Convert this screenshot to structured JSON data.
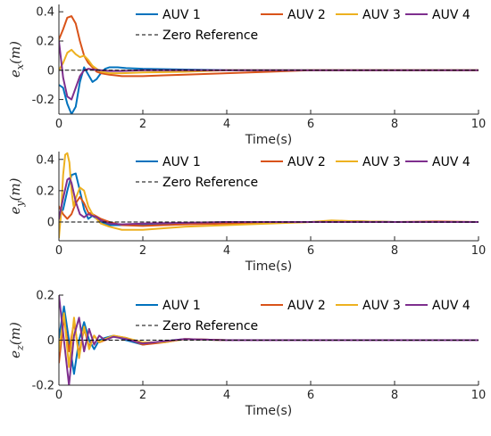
{
  "chart_data": [
    {
      "type": "line",
      "ylabel": "e_x(m)",
      "xlabel": "Time(s)",
      "xlim": [
        0,
        10
      ],
      "ylim": [
        -0.3,
        0.45
      ],
      "xticks": [
        "0",
        "2",
        "4",
        "6",
        "8",
        "10"
      ],
      "yticks": [
        -0.2,
        0,
        0.2,
        0.4
      ],
      "ytick_labels": [
        "-0.2",
        "0",
        "0.2",
        "0.4"
      ],
      "legend": "top-right",
      "series": [
        {
          "name": "AUV 1",
          "color": "#0072BD",
          "x": [
            0,
            0.1,
            0.2,
            0.3,
            0.4,
            0.5,
            0.6,
            0.7,
            0.8,
            0.9,
            1.0,
            1.1,
            1.2,
            1.4,
            1.6,
            2.0,
            3.0,
            4.0,
            10
          ],
          "y": [
            -0.1,
            -0.12,
            -0.23,
            -0.3,
            -0.25,
            -0.08,
            0.02,
            -0.03,
            -0.08,
            -0.06,
            -0.02,
            0.01,
            0.02,
            0.02,
            0.015,
            0.01,
            0.005,
            0,
            0
          ]
        },
        {
          "name": "AUV 2",
          "color": "#D95319",
          "x": [
            0,
            0.1,
            0.2,
            0.3,
            0.4,
            0.5,
            0.6,
            0.7,
            0.8,
            0.9,
            1.0,
            1.2,
            1.5,
            2.0,
            2.5,
            3.0,
            4.0,
            5.0,
            6.0,
            10
          ],
          "y": [
            0.21,
            0.28,
            0.36,
            0.37,
            0.32,
            0.2,
            0.1,
            0.05,
            0.02,
            -0.01,
            -0.02,
            -0.03,
            -0.04,
            -0.04,
            -0.035,
            -0.03,
            -0.02,
            -0.01,
            0,
            0
          ]
        },
        {
          "name": "AUV 3",
          "color": "#EDB120",
          "x": [
            0,
            0.1,
            0.2,
            0.3,
            0.4,
            0.5,
            0.6,
            0.7,
            0.8,
            0.9,
            1.0,
            1.2,
            1.5,
            2.0,
            3.0,
            4.0,
            10
          ],
          "y": [
            0,
            0.05,
            0.12,
            0.14,
            0.11,
            0.09,
            0.1,
            0.07,
            0.03,
            0.01,
            -0.01,
            -0.02,
            -0.02,
            -0.015,
            -0.01,
            0,
            0
          ]
        },
        {
          "name": "AUV 4",
          "color": "#7E2F8E",
          "x": [
            0,
            0.1,
            0.2,
            0.3,
            0.4,
            0.5,
            0.6,
            0.7,
            0.8,
            1.0,
            1.2,
            1.5,
            2.0,
            3.0,
            10
          ],
          "y": [
            0.2,
            -0.05,
            -0.18,
            -0.2,
            -0.12,
            -0.04,
            0,
            0.01,
            0.005,
            0,
            -0.005,
            -0.005,
            0,
            0,
            0
          ]
        },
        {
          "name": "Zero Reference",
          "color": "#000000",
          "dashed": true,
          "x": [
            0,
            10
          ],
          "y": [
            0,
            0
          ]
        }
      ]
    },
    {
      "type": "line",
      "ylabel": "e_y(m)",
      "xlabel": "Time(s)",
      "xlim": [
        0,
        10
      ],
      "ylim": [
        -0.12,
        0.45
      ],
      "xticks": [
        "0",
        "2",
        "4",
        "6",
        "8",
        "10"
      ],
      "yticks": [
        0,
        0.2,
        0.4
      ],
      "ytick_labels": [
        "0",
        "0.2",
        "0.4"
      ],
      "legend": "top-right",
      "series": [
        {
          "name": "AUV 1",
          "color": "#0072BD",
          "x": [
            0,
            0.1,
            0.2,
            0.3,
            0.4,
            0.5,
            0.6,
            0.7,
            0.8,
            0.9,
            1.0,
            1.2,
            1.5,
            2.0,
            3.0,
            4.0,
            6.0,
            7.0,
            8.0,
            10
          ],
          "y": [
            0.05,
            0.08,
            0.2,
            0.3,
            0.31,
            0.2,
            0.08,
            0.02,
            0.04,
            0.02,
            0,
            -0.02,
            -0.02,
            -0.015,
            -0.01,
            0,
            0,
            0.005,
            0,
            0
          ]
        },
        {
          "name": "AUV 2",
          "color": "#D95319",
          "x": [
            0,
            0.1,
            0.2,
            0.3,
            0.4,
            0.5,
            0.6,
            0.7,
            0.8,
            1.0,
            1.2,
            1.5,
            2.0,
            2.5,
            3.0,
            4.0,
            5.0,
            6.0,
            7.0,
            8.0,
            9.0,
            10
          ],
          "y": [
            0.1,
            0.05,
            0.02,
            0.05,
            0.12,
            0.16,
            0.12,
            0.06,
            0.05,
            0.02,
            0,
            -0.02,
            -0.025,
            -0.02,
            -0.015,
            -0.01,
            -0.005,
            0,
            0.005,
            0,
            0.003,
            0
          ]
        },
        {
          "name": "AUV 3",
          "color": "#EDB120",
          "x": [
            0,
            0.05,
            0.1,
            0.15,
            0.2,
            0.25,
            0.3,
            0.35,
            0.4,
            0.5,
            0.6,
            0.7,
            0.8,
            0.9,
            1.0,
            1.2,
            1.5,
            2.0,
            2.5,
            3.0,
            4.0,
            5.0,
            6.0,
            6.5,
            7.0,
            8.0,
            10
          ],
          "y": [
            -0.1,
            0.05,
            0.3,
            0.43,
            0.44,
            0.38,
            0.2,
            0.1,
            0.15,
            0.22,
            0.2,
            0.1,
            0.05,
            0.02,
            -0.01,
            -0.03,
            -0.05,
            -0.05,
            -0.04,
            -0.03,
            -0.02,
            -0.01,
            0,
            0.01,
            0.005,
            0,
            0
          ]
        },
        {
          "name": "AUV 4",
          "color": "#7E2F8E",
          "x": [
            0,
            0.1,
            0.2,
            0.25,
            0.3,
            0.4,
            0.5,
            0.6,
            0.7,
            0.8,
            0.9,
            1.0,
            1.2,
            1.5,
            2.0,
            3.0,
            4.0,
            10
          ],
          "y": [
            0.02,
            0.15,
            0.27,
            0.28,
            0.25,
            0.13,
            0.05,
            0.03,
            0.05,
            0.04,
            0.03,
            0.01,
            -0.01,
            -0.015,
            -0.01,
            -0.005,
            0,
            0
          ]
        },
        {
          "name": "Zero Reference",
          "color": "#000000",
          "dashed": true,
          "x": [
            0,
            10
          ],
          "y": [
            0,
            0
          ]
        }
      ]
    },
    {
      "type": "line",
      "ylabel": "e_z(m)",
      "xlabel": "Time(s)",
      "xlim": [
        0,
        10
      ],
      "ylim": [
        -0.2,
        0.2
      ],
      "xticks": [
        "0",
        "2",
        "4",
        "6",
        "8",
        "10"
      ],
      "yticks": [
        -0.2,
        0,
        0.2
      ],
      "ytick_labels": [
        "-0.2",
        "0",
        "0.2"
      ],
      "legend": "top-right",
      "series": [
        {
          "name": "AUV 1",
          "color": "#0072BD",
          "x": [
            0,
            0.12,
            0.24,
            0.36,
            0.48,
            0.6,
            0.72,
            0.84,
            0.96,
            1.1,
            1.3,
            1.6,
            2.0,
            2.5,
            3.0,
            4.0,
            10
          ],
          "y": [
            0.01,
            0.15,
            0.0,
            -0.15,
            0.0,
            0.08,
            0.0,
            -0.04,
            0.0,
            0.01,
            0.02,
            0.0,
            -0.02,
            -0.005,
            0.005,
            0,
            0
          ]
        },
        {
          "name": "AUV 2",
          "color": "#D95319",
          "x": [
            0,
            0.12,
            0.24,
            0.36,
            0.48,
            0.6,
            0.72,
            0.84,
            0.96,
            1.1,
            1.3,
            1.6,
            2.0,
            2.5,
            3.0,
            4.0,
            10
          ],
          "y": [
            -0.1,
            0.1,
            -0.05,
            0.08,
            -0.06,
            0.05,
            -0.03,
            0.02,
            -0.01,
            0.0,
            0.02,
            0.01,
            -0.02,
            -0.01,
            0.005,
            0,
            0
          ]
        },
        {
          "name": "AUV 3",
          "color": "#EDB120",
          "x": [
            0,
            0.12,
            0.24,
            0.36,
            0.48,
            0.6,
            0.72,
            0.84,
            0.96,
            1.1,
            1.3,
            1.6,
            2.0,
            2.5,
            3.0,
            4.0,
            10
          ],
          "y": [
            -0.05,
            0.12,
            -0.12,
            0.1,
            -0.08,
            0.06,
            -0.04,
            0.02,
            -0.01,
            0.005,
            0.02,
            0.01,
            -0.01,
            -0.01,
            0.005,
            0,
            0
          ]
        },
        {
          "name": "AUV 4",
          "color": "#7E2F8E",
          "x": [
            0,
            0.12,
            0.24,
            0.36,
            0.48,
            0.6,
            0.72,
            0.84,
            0.96,
            1.1,
            1.3,
            1.6,
            2.0,
            2.5,
            3.0,
            4.0,
            10
          ],
          "y": [
            0.2,
            0.0,
            -0.2,
            0.02,
            0.1,
            -0.05,
            0.05,
            -0.02,
            0.02,
            0.0,
            0.015,
            0.005,
            -0.015,
            -0.005,
            0.005,
            0,
            0
          ]
        },
        {
          "name": "Zero Reference",
          "color": "#000000",
          "dashed": true,
          "x": [
            0,
            10
          ],
          "y": [
            0,
            0
          ]
        }
      ]
    }
  ]
}
